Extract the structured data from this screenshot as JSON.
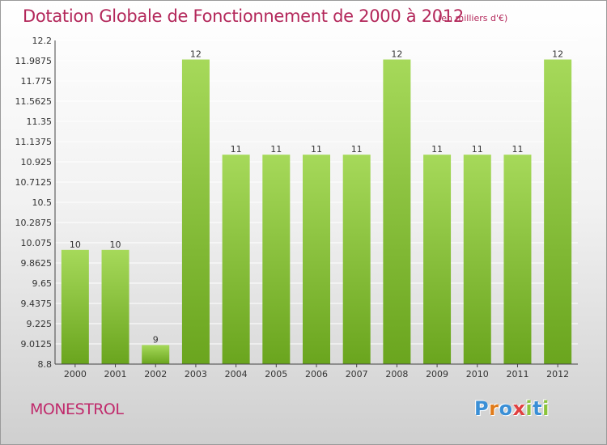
{
  "title": "Dotation Globale de Fonctionnement de 2000 à 2012",
  "subtitle": "(en milliers d'€)",
  "commune": "MONESTROL",
  "logo": {
    "text": "Proxiti",
    "letters": [
      {
        "ch": "P",
        "color": "#3a8fd6"
      },
      {
        "ch": "r",
        "color": "#e07b1a"
      },
      {
        "ch": "o",
        "color": "#3a8fd6"
      },
      {
        "ch": "x",
        "color": "#e04040"
      },
      {
        "ch": "i",
        "color": "#8cc43c"
      },
      {
        "ch": "t",
        "color": "#3a8fd6"
      },
      {
        "ch": "i",
        "color": "#8cc43c"
      }
    ]
  },
  "colors": {
    "bar_light": "#a6d95a",
    "bar_dark": "#6aa51e",
    "title": "#b3275a",
    "grid": "#ffffff"
  },
  "chart_data": {
    "type": "bar",
    "title": "Dotation Globale de Fonctionnement de 2000 à 2012",
    "subtitle": "(en milliers d'€)",
    "categories": [
      "2000",
      "2001",
      "2002",
      "2003",
      "2004",
      "2005",
      "2006",
      "2007",
      "2008",
      "2009",
      "2010",
      "2011",
      "2012"
    ],
    "values": [
      10,
      10,
      9,
      12,
      11,
      11,
      11,
      11,
      12,
      11,
      11,
      11,
      12
    ],
    "plotted_values": [
      10.0,
      10.0,
      9.0,
      12.0,
      11.0,
      11.0,
      11.0,
      11.0,
      12.0,
      11.0,
      11.0,
      11.0,
      12.0
    ],
    "data_labels": [
      "10",
      "10",
      "9",
      "12",
      "11",
      "11",
      "11",
      "11",
      "12",
      "11",
      "11",
      "11",
      "12"
    ],
    "ylim": [
      8.8,
      12.2
    ],
    "yticks": [
      8.8,
      9.0125,
      9.225,
      9.4375,
      9.65,
      9.8625,
      10.075,
      10.2875,
      10.5,
      10.7125,
      10.925,
      11.1375,
      11.35,
      11.5625,
      11.775,
      11.9875,
      12.2
    ],
    "ytick_labels": [
      "8.8",
      "9.0125",
      "9.225",
      "9.4375",
      "9.65",
      "9.8625",
      "10.075",
      "10.2875",
      "10.5",
      "10.7125",
      "10.925",
      "11.1375",
      "11.35",
      "11.5625",
      "11.775",
      "11.9875",
      "12.2"
    ],
    "xlabel": "",
    "ylabel": "",
    "grid": true,
    "legend": "none"
  }
}
